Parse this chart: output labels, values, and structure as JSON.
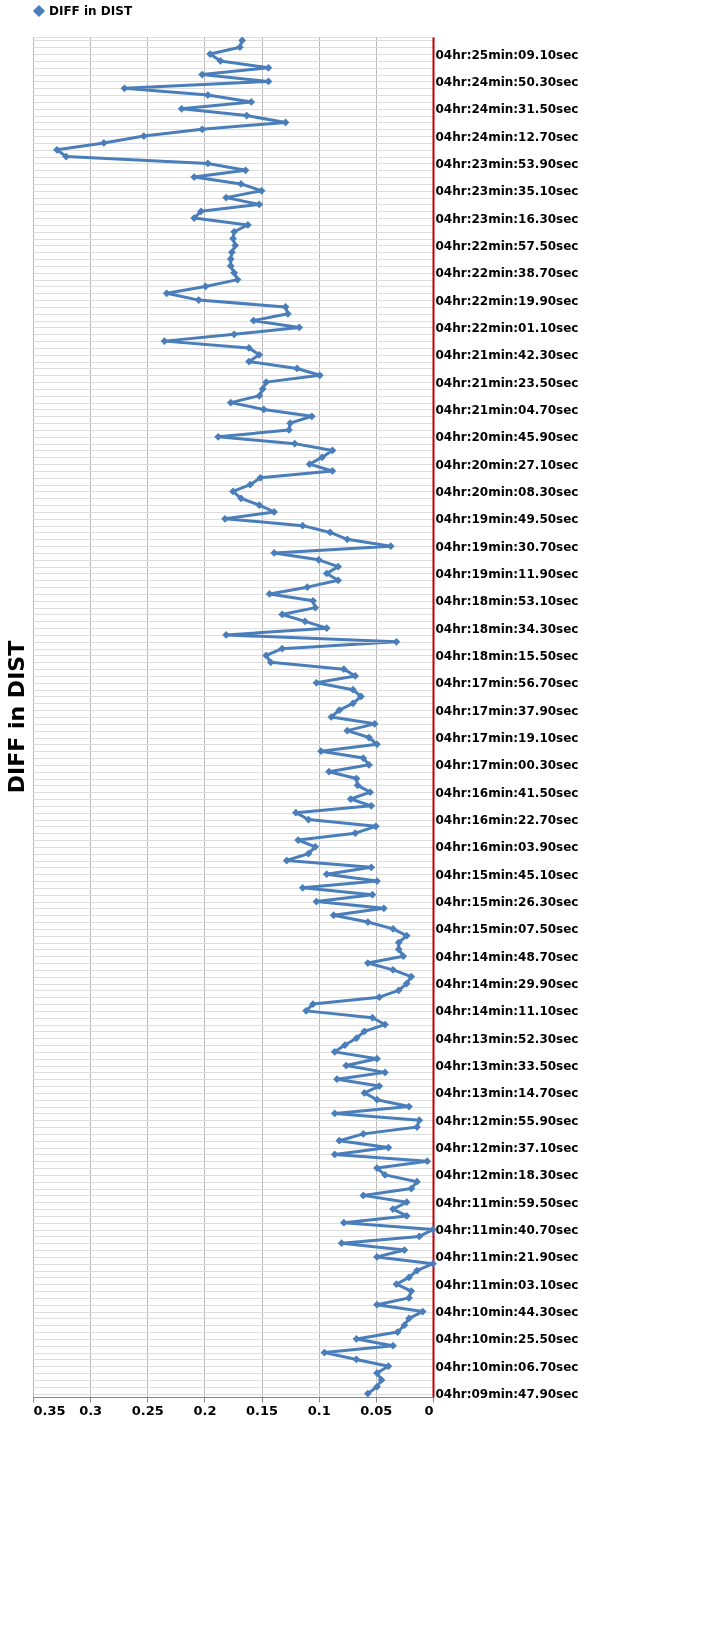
{
  "chart_data": {
    "type": "line",
    "title": "DIFF in DIST",
    "orientation": "horizontal",
    "categories": [
      null,
      null,
      "04hr:25min:09.10sec",
      null,
      null,
      null,
      "04hr:24min:50.30sec",
      null,
      null,
      null,
      "04hr:24min:31.50sec",
      null,
      null,
      null,
      "04hr:24min:12.70sec",
      null,
      null,
      null,
      "04hr:23min:53.90sec",
      null,
      null,
      null,
      "04hr:23min:35.10sec",
      null,
      null,
      null,
      "04hr:23min:16.30sec",
      null,
      null,
      null,
      "04hr:22min:57.50sec",
      null,
      null,
      null,
      "04hr:22min:38.70sec",
      null,
      null,
      null,
      "04hr:22min:19.90sec",
      null,
      null,
      null,
      "04hr:22min:01.10sec",
      null,
      null,
      null,
      "04hr:21min:42.30sec",
      null,
      null,
      null,
      "04hr:21min:23.50sec",
      null,
      null,
      null,
      "04hr:21min:04.70sec",
      null,
      null,
      null,
      "04hr:20min:45.90sec",
      null,
      null,
      null,
      "04hr:20min:27.10sec",
      null,
      null,
      null,
      "04hr:20min:08.30sec",
      null,
      null,
      null,
      "04hr:19min:49.50sec",
      null,
      null,
      null,
      "04hr:19min:30.70sec",
      null,
      null,
      null,
      "04hr:19min:11.90sec",
      null,
      null,
      null,
      "04hr:18min:53.10sec",
      null,
      null,
      null,
      "04hr:18min:34.30sec",
      null,
      null,
      null,
      "04hr:18min:15.50sec",
      null,
      null,
      null,
      "04hr:17min:56.70sec",
      null,
      null,
      null,
      "04hr:17min:37.90sec",
      null,
      null,
      null,
      "04hr:17min:19.10sec",
      null,
      null,
      null,
      "04hr:17min:00.30sec",
      null,
      null,
      null,
      "04hr:16min:41.50sec",
      null,
      null,
      null,
      "04hr:16min:22.70sec",
      null,
      null,
      null,
      "04hr:16min:03.90sec",
      null,
      null,
      null,
      "04hr:15min:45.10sec",
      null,
      null,
      null,
      "04hr:15min:26.30sec",
      null,
      null,
      null,
      "04hr:15min:07.50sec",
      null,
      null,
      null,
      "04hr:14min:48.70sec",
      null,
      null,
      null,
      "04hr:14min:29.90sec",
      null,
      null,
      null,
      "04hr:14min:11.10sec",
      null,
      null,
      null,
      "04hr:13min:52.30sec",
      null,
      null,
      null,
      "04hr:13min:33.50sec",
      null,
      null,
      null,
      "04hr:13min:14.70sec",
      null,
      null,
      null,
      "04hr:12min:55.90sec",
      null,
      null,
      null,
      "04hr:12min:37.10sec",
      null,
      null,
      null,
      "04hr:12min:18.30sec",
      null,
      null,
      null,
      "04hr:11min:59.50sec",
      null,
      null,
      null,
      "04hr:11min:40.70sec",
      null,
      null,
      null,
      "04hr:11min:21.90sec",
      null,
      null,
      null,
      "04hr:11min:03.10sec",
      null,
      null,
      null,
      "04hr:10min:44.30sec",
      null,
      null,
      null,
      "04hr:10min:25.50sec",
      null,
      null,
      null,
      "04hr:10min:06.70sec",
      null,
      null,
      null,
      "04hr:09min:47.90sec"
    ],
    "series": [
      {
        "name": "DIFF in DIST",
        "color": "#4a7ebb",
        "values": [
          0.167,
          0.169,
          0.195,
          0.186,
          0.144,
          0.202,
          0.144,
          0.27,
          0.197,
          0.159,
          0.22,
          0.163,
          0.129,
          0.202,
          0.253,
          0.288,
          0.329,
          0.321,
          0.197,
          0.164,
          0.209,
          0.168,
          0.15,
          0.181,
          0.152,
          0.203,
          0.209,
          0.162,
          0.174,
          0.175,
          0.173,
          0.176,
          0.177,
          0.177,
          0.174,
          0.171,
          0.199,
          0.233,
          0.205,
          0.129,
          0.127,
          0.157,
          0.117,
          0.174,
          0.235,
          0.161,
          0.152,
          0.161,
          0.119,
          0.099,
          0.146,
          0.149,
          0.152,
          0.177,
          0.148,
          0.106,
          0.125,
          0.126,
          0.188,
          0.121,
          0.088,
          0.097,
          0.108,
          0.088,
          0.151,
          0.16,
          0.175,
          0.168,
          0.152,
          0.139,
          0.182,
          0.114,
          0.09,
          0.075,
          0.037,
          0.139,
          0.1,
          0.083,
          0.093,
          0.083,
          0.11,
          0.143,
          0.105,
          0.103,
          0.132,
          0.112,
          0.093,
          0.181,
          0.032,
          0.132,
          0.146,
          0.142,
          0.078,
          0.068,
          0.102,
          0.07,
          0.063,
          0.07,
          0.082,
          0.089,
          0.051,
          0.075,
          0.056,
          0.049,
          0.098,
          0.061,
          0.056,
          0.091,
          0.067,
          0.066,
          0.055,
          0.072,
          0.054,
          0.12,
          0.109,
          0.05,
          0.068,
          0.118,
          0.103,
          0.109,
          0.128,
          0.054,
          0.093,
          0.049,
          0.114,
          0.053,
          0.102,
          0.043,
          0.087,
          0.057,
          0.035,
          0.023,
          0.03,
          0.03,
          0.026,
          0.057,
          0.035,
          0.019,
          0.023,
          0.03,
          0.047,
          0.105,
          0.111,
          0.053,
          0.042,
          0.06,
          0.067,
          0.077,
          0.086,
          0.049,
          0.076,
          0.042,
          0.084,
          0.047,
          0.06,
          0.049,
          0.021,
          0.086,
          0.012,
          0.014,
          0.061,
          0.082,
          0.039,
          0.086,
          0.005,
          0.049,
          0.042,
          0.014,
          0.019,
          0.061,
          0.023,
          0.035,
          0.023,
          0.078,
          0.0,
          0.012,
          0.08,
          0.025,
          0.049,
          0.0,
          0.014,
          0.021,
          0.032,
          0.019,
          0.021,
          0.049,
          0.009,
          0.021,
          0.025,
          0.031,
          0.067,
          0.035,
          0.095,
          0.067,
          0.039,
          0.049,
          0.045,
          0.049,
          0.057
        ]
      }
    ],
    "xlim": [
      0.35,
      0
    ],
    "xticks": [
      0.35,
      0.3,
      0.25,
      0.2,
      0.15,
      0.1,
      0.05,
      0
    ],
    "grid": true,
    "legend": "top",
    "marker": "diamond",
    "line_style": "solid"
  }
}
